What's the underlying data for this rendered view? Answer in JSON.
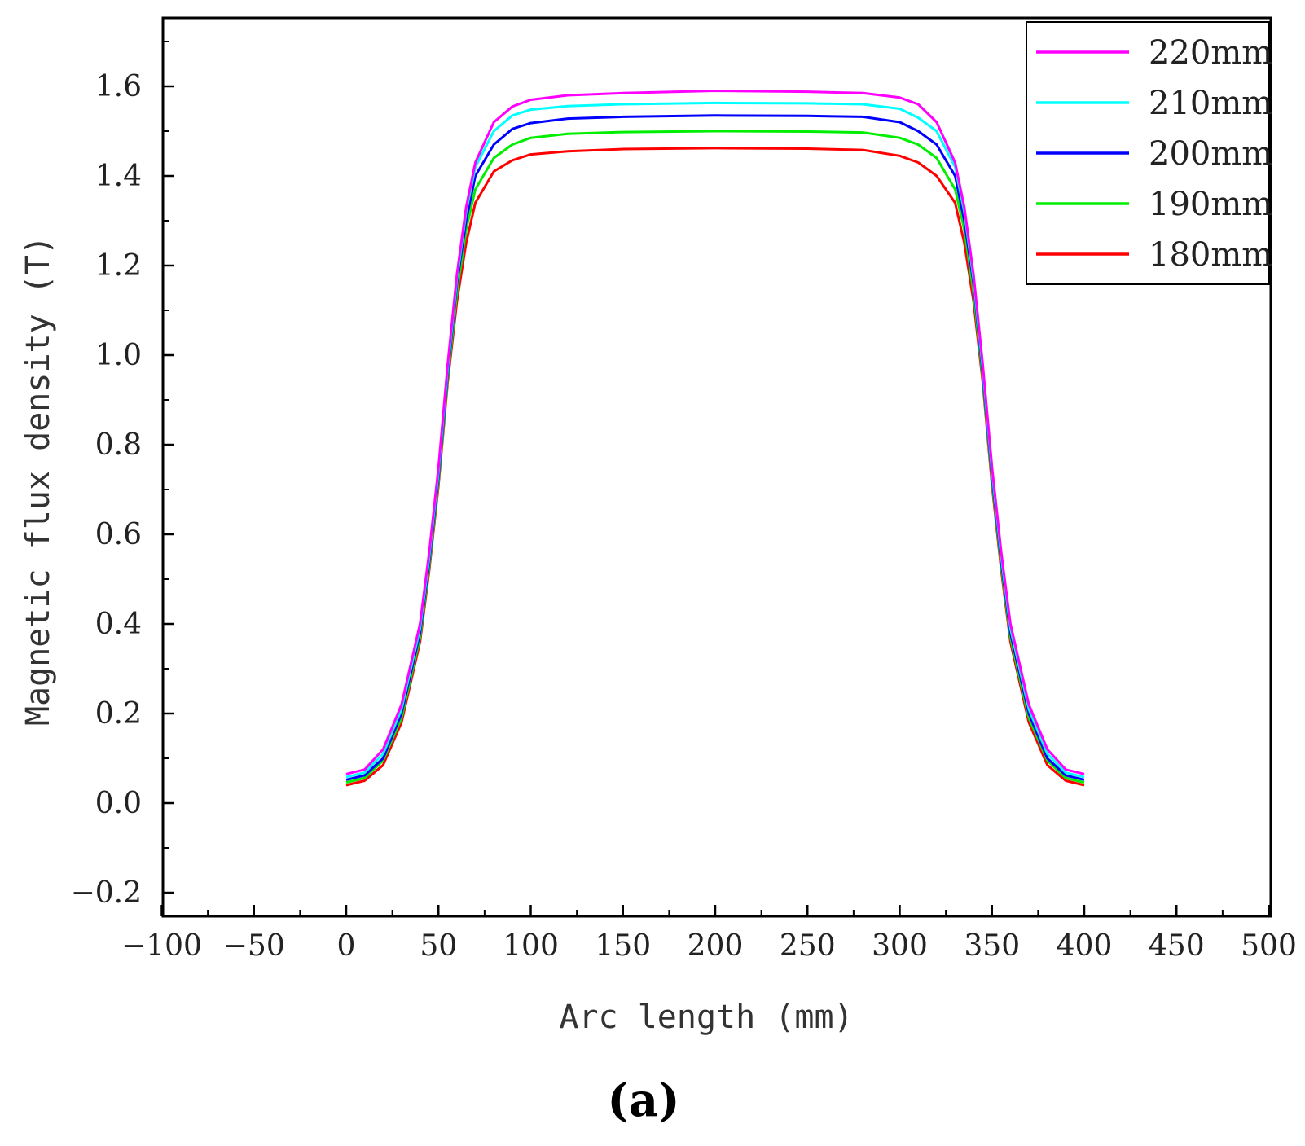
{
  "chart_data": {
    "type": "line",
    "title": "",
    "xlabel": "Arc length (mm)",
    "ylabel": "Magnetic flux density (T)",
    "xlim": [
      -100,
      500
    ],
    "ylim": [
      -0.25,
      1.75
    ],
    "xticks": [
      -100,
      -50,
      0,
      50,
      100,
      150,
      200,
      250,
      300,
      350,
      400,
      450,
      500
    ],
    "xtick_labels": [
      "−100",
      "−50",
      "0",
      "50",
      "100",
      "150",
      "200",
      "250",
      "300",
      "350",
      "400",
      "450",
      "500"
    ],
    "yticks": [
      -0.2,
      0.0,
      0.2,
      0.4,
      0.6,
      0.8,
      1.0,
      1.2,
      1.4,
      1.6
    ],
    "ytick_labels": [
      "−0.2",
      "0.0",
      "0.2",
      "0.4",
      "0.6",
      "0.8",
      "1.0",
      "1.2",
      "1.4",
      "1.6"
    ],
    "grid": false,
    "legend_position": "top-right",
    "x": [
      0,
      10,
      20,
      30,
      40,
      45,
      50,
      55,
      60,
      65,
      70,
      80,
      90,
      100,
      120,
      150,
      200,
      250,
      280,
      300,
      310,
      320,
      330,
      335,
      340,
      345,
      350,
      355,
      360,
      370,
      380,
      390,
      400
    ],
    "series": [
      {
        "name": "220mm",
        "color": "#ff00ff",
        "values": [
          0.065,
          0.075,
          0.12,
          0.22,
          0.4,
          0.56,
          0.75,
          0.98,
          1.18,
          1.33,
          1.43,
          1.52,
          1.555,
          1.57,
          1.58,
          1.585,
          1.59,
          1.588,
          1.585,
          1.575,
          1.56,
          1.52,
          1.43,
          1.33,
          1.18,
          0.98,
          0.75,
          0.56,
          0.4,
          0.22,
          0.12,
          0.075,
          0.065
        ]
      },
      {
        "name": "210mm",
        "color": "#00ffff",
        "values": [
          0.058,
          0.068,
          0.11,
          0.21,
          0.39,
          0.55,
          0.74,
          0.97,
          1.17,
          1.32,
          1.42,
          1.5,
          1.535,
          1.548,
          1.556,
          1.56,
          1.563,
          1.562,
          1.56,
          1.55,
          1.53,
          1.5,
          1.42,
          1.32,
          1.17,
          0.97,
          0.74,
          0.55,
          0.39,
          0.21,
          0.11,
          0.068,
          0.058
        ]
      },
      {
        "name": "200mm",
        "color": "#0000ff",
        "values": [
          0.052,
          0.062,
          0.1,
          0.2,
          0.38,
          0.54,
          0.73,
          0.96,
          1.16,
          1.3,
          1.4,
          1.47,
          1.505,
          1.518,
          1.528,
          1.532,
          1.535,
          1.534,
          1.532,
          1.52,
          1.5,
          1.47,
          1.4,
          1.3,
          1.16,
          0.96,
          0.73,
          0.54,
          0.38,
          0.2,
          0.1,
          0.062,
          0.052
        ]
      },
      {
        "name": "190mm",
        "color": "#00ee00",
        "values": [
          0.046,
          0.056,
          0.095,
          0.19,
          0.37,
          0.53,
          0.72,
          0.95,
          1.14,
          1.28,
          1.37,
          1.44,
          1.47,
          1.485,
          1.494,
          1.498,
          1.5,
          1.499,
          1.497,
          1.485,
          1.47,
          1.44,
          1.37,
          1.28,
          1.14,
          0.95,
          0.72,
          0.53,
          0.37,
          0.19,
          0.095,
          0.056,
          0.046
        ]
      },
      {
        "name": "180mm",
        "color": "#ff0000",
        "values": [
          0.04,
          0.05,
          0.085,
          0.18,
          0.36,
          0.52,
          0.71,
          0.94,
          1.12,
          1.25,
          1.34,
          1.41,
          1.435,
          1.448,
          1.455,
          1.46,
          1.462,
          1.461,
          1.458,
          1.445,
          1.43,
          1.4,
          1.34,
          1.25,
          1.12,
          0.94,
          0.71,
          0.52,
          0.36,
          0.18,
          0.085,
          0.05,
          0.04
        ]
      }
    ]
  },
  "panel_label": "(a)"
}
